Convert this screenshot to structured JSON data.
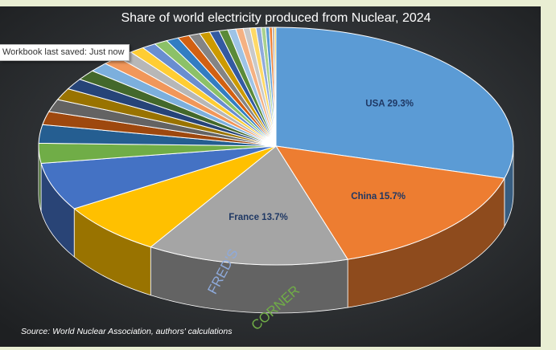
{
  "chart_data": {
    "type": "pie",
    "title": "Share of world electricity produced from Nuclear, 2024",
    "source": "Source: World Nuclear Association, authors' calculations",
    "slices": [
      {
        "label": "USA",
        "value": 29.3,
        "display": "USA 29.3%",
        "color": "#5b9bd5"
      },
      {
        "label": "China",
        "value": 15.7,
        "display": "China 15.7%",
        "color": "#ed7d31"
      },
      {
        "label": "France",
        "value": 13.7,
        "display": "France  13.7%",
        "color": "#a5a5a5"
      },
      {
        "label": "",
        "value": 7.3,
        "display": "",
        "color": "#ffc000"
      },
      {
        "label": "",
        "value": 6.5,
        "display": "",
        "color": "#4472c4"
      },
      {
        "label": "",
        "value": 2.7,
        "display": "",
        "color": "#70ad47"
      },
      {
        "label": "",
        "value": 2.5,
        "display": "",
        "color": "#255e91"
      },
      {
        "label": "",
        "value": 1.8,
        "display": "",
        "color": "#9e480e"
      },
      {
        "label": "",
        "value": 1.7,
        "display": "",
        "color": "#636363"
      },
      {
        "label": "",
        "value": 1.6,
        "display": "",
        "color": "#997300"
      },
      {
        "label": "",
        "value": 1.5,
        "display": "",
        "color": "#264478"
      },
      {
        "label": "",
        "value": 1.4,
        "display": "",
        "color": "#43682b"
      },
      {
        "label": "",
        "value": 1.3,
        "display": "",
        "color": "#7cafdd"
      },
      {
        "label": "",
        "value": 1.2,
        "display": "",
        "color": "#f1975a"
      },
      {
        "label": "",
        "value": 1.1,
        "display": "",
        "color": "#b7b7b7"
      },
      {
        "label": "",
        "value": 1.0,
        "display": "",
        "color": "#ffcd33"
      },
      {
        "label": "",
        "value": 0.95,
        "display": "",
        "color": "#698ed0"
      },
      {
        "label": "",
        "value": 0.9,
        "display": "",
        "color": "#8cc168"
      },
      {
        "label": "",
        "value": 0.85,
        "display": "",
        "color": "#327dc2"
      },
      {
        "label": "",
        "value": 0.8,
        "display": "",
        "color": "#d26012"
      },
      {
        "label": "",
        "value": 0.75,
        "display": "",
        "color": "#848484"
      },
      {
        "label": "",
        "value": 0.7,
        "display": "",
        "color": "#cc9a00"
      },
      {
        "label": "",
        "value": 0.65,
        "display": "",
        "color": "#335aa1"
      },
      {
        "label": "",
        "value": 0.6,
        "display": "",
        "color": "#5a8a39"
      },
      {
        "label": "",
        "value": 0.55,
        "display": "",
        "color": "#9dc3e6"
      },
      {
        "label": "",
        "value": 0.5,
        "display": "",
        "color": "#f4b183"
      },
      {
        "label": "",
        "value": 0.45,
        "display": "",
        "color": "#c9c9c9"
      },
      {
        "label": "",
        "value": 0.4,
        "display": "",
        "color": "#ffd966"
      },
      {
        "label": "",
        "value": 0.35,
        "display": "",
        "color": "#8faadc"
      },
      {
        "label": "",
        "value": 0.3,
        "display": "",
        "color": "#a9d18e"
      },
      {
        "label": "",
        "value": 0.25,
        "display": "",
        "color": "#5b9bd5"
      },
      {
        "label": "",
        "value": 0.2,
        "display": "",
        "color": "#ed7d31"
      },
      {
        "label": "",
        "value": 0.15,
        "display": "",
        "color": "#a5a5a5"
      },
      {
        "label": "",
        "value": 0.1,
        "display": "",
        "color": "#ffc000"
      }
    ],
    "legend": "none",
    "style": "3d-pie"
  },
  "tooltip": {
    "text": "Workbook last saved: Just now"
  },
  "watermark": {
    "part1": "FRED'S",
    "part2": "CORNER",
    "color1": "#8eaadb",
    "color2": "#70ad47"
  },
  "colors": {
    "background": "#2b2e31",
    "frame": "#e9eed3",
    "label_text": "#1f3864"
  }
}
